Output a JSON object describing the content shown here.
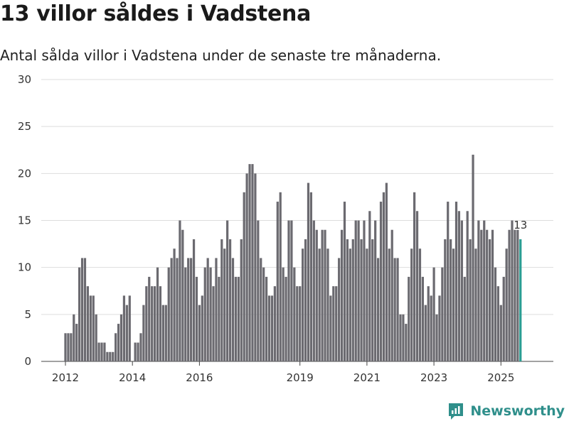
{
  "chart_data": {
    "type": "bar",
    "title": "13 villor såldes i Vadstena",
    "subtitle": "Antal sålda villor i Vadstena under de senaste tre månaderna.",
    "xlabel": "",
    "ylabel": "",
    "ylim": [
      0,
      30
    ],
    "yticks": [
      0,
      5,
      10,
      15,
      20,
      25,
      30
    ],
    "x_start": 2012.0,
    "x_step": 0.083333,
    "xticks": [
      2012,
      2014,
      2016,
      2019,
      2021,
      2023,
      2025
    ],
    "values": [
      3,
      3,
      3,
      5,
      4,
      10,
      11,
      11,
      8,
      7,
      7,
      5,
      2,
      2,
      2,
      1,
      1,
      1,
      3,
      4,
      5,
      7,
      6,
      7,
      0,
      2,
      2,
      3,
      6,
      8,
      9,
      8,
      8,
      10,
      8,
      6,
      6,
      10,
      11,
      12,
      11,
      15,
      14,
      10,
      11,
      11,
      13,
      9,
      6,
      7,
      10,
      11,
      10,
      8,
      11,
      9,
      13,
      12,
      15,
      13,
      11,
      9,
      9,
      13,
      18,
      20,
      21,
      21,
      20,
      15,
      11,
      10,
      9,
      7,
      7,
      8,
      17,
      18,
      10,
      9,
      15,
      15,
      10,
      8,
      8,
      12,
      13,
      19,
      18,
      15,
      14,
      12,
      14,
      14,
      12,
      7,
      8,
      8,
      11,
      14,
      17,
      13,
      12,
      13,
      15,
      15,
      13,
      15,
      12,
      16,
      13,
      15,
      11,
      17,
      18,
      19,
      12,
      14,
      11,
      11,
      5,
      5,
      4,
      9,
      12,
      18,
      16,
      12,
      9,
      6,
      8,
      7,
      10,
      5,
      7,
      10,
      13,
      17,
      13,
      12,
      17,
      16,
      15,
      9,
      16,
      13,
      22,
      12,
      15,
      14,
      15,
      14,
      13,
      14,
      10,
      8,
      6,
      9,
      12,
      14,
      15,
      14,
      14,
      13
    ],
    "highlight_value": 13,
    "highlight_label": "13",
    "bar_color": "#6b6a70",
    "highlight_color": "#2a9d93"
  },
  "brand": {
    "name": "Newsworthy",
    "color": "#2f8f8b"
  }
}
